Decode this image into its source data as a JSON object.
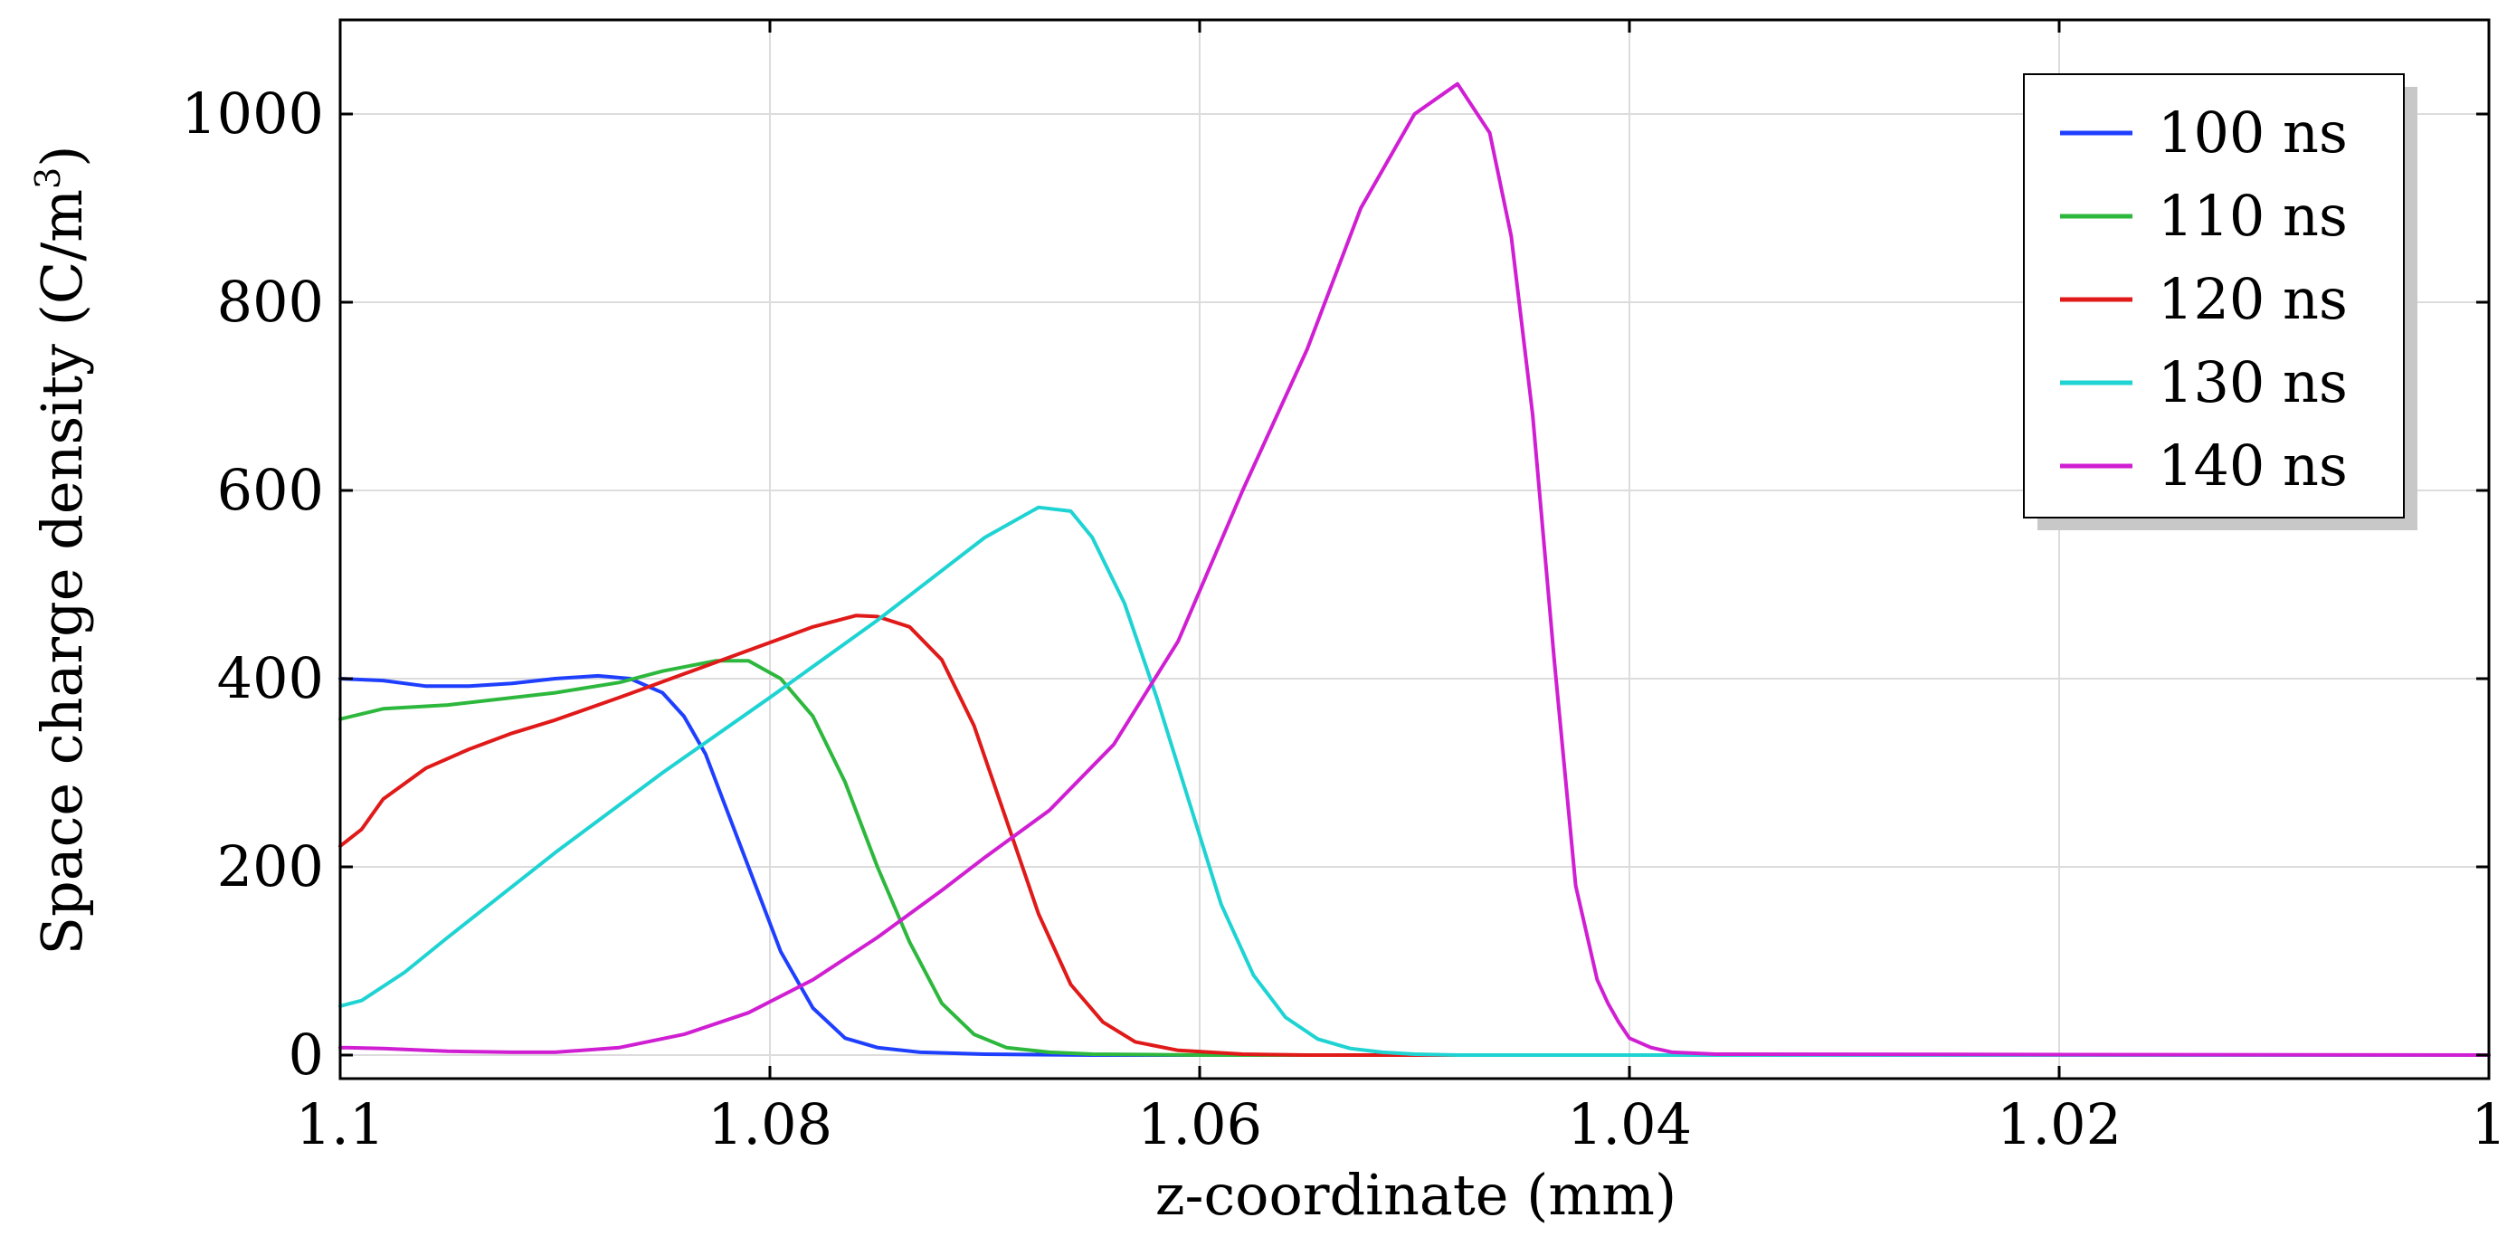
{
  "chart_data": {
    "type": "line",
    "title": "",
    "xlabel": "z-coordinate (mm)",
    "ylabel": "Space charge density (C/m",
    "ylabel_sup": "3",
    "ylabel_close": ")",
    "xlim": [
      1.1,
      1.0
    ],
    "ylim": [
      -25,
      1100
    ],
    "grid": true,
    "legend_position": "top-right",
    "x_ticks": [
      1.1,
      1.08,
      1.06,
      1.04,
      1.02,
      1.0
    ],
    "x_tick_labels": [
      "1.1",
      "1.08",
      "1.06",
      "1.04",
      "1.02",
      "1"
    ],
    "y_ticks": [
      0,
      200,
      400,
      600,
      800,
      1000
    ],
    "y_tick_labels": [
      "0",
      "200",
      "400",
      "600",
      "800",
      "1000"
    ],
    "series": [
      {
        "name": "100 ns",
        "color": "#1f3fff",
        "x": [
          1.1,
          1.098,
          1.096,
          1.094,
          1.092,
          1.09,
          1.088,
          1.0865,
          1.085,
          1.084,
          1.083,
          1.082,
          1.081,
          1.0795,
          1.078,
          1.0765,
          1.075,
          1.073,
          1.07,
          1.065,
          1.06,
          1.0
        ],
        "values": [
          400,
          398,
          392,
          392,
          395,
          400,
          403,
          400,
          385,
          360,
          320,
          260,
          200,
          110,
          50,
          18,
          8,
          3,
          1,
          0,
          0,
          0
        ]
      },
      {
        "name": "110 ns",
        "color": "#2db83d",
        "x": [
          1.1,
          1.098,
          1.095,
          1.09,
          1.087,
          1.085,
          1.0825,
          1.081,
          1.0795,
          1.078,
          1.0765,
          1.075,
          1.0735,
          1.072,
          1.0705,
          1.069,
          1.067,
          1.065,
          1.06,
          1.0
        ],
        "values": [
          357,
          368,
          372,
          385,
          396,
          408,
          419,
          419,
          400,
          360,
          290,
          200,
          120,
          55,
          22,
          8,
          3,
          1,
          0,
          0
        ]
      },
      {
        "name": "120 ns",
        "color": "#e01919",
        "x": [
          1.1,
          1.099,
          1.098,
          1.096,
          1.094,
          1.092,
          1.09,
          1.087,
          1.084,
          1.081,
          1.078,
          1.076,
          1.075,
          1.0735,
          1.072,
          1.0705,
          1.069,
          1.0675,
          1.066,
          1.0645,
          1.063,
          1.061,
          1.058,
          1.055,
          1.0
        ],
        "values": [
          222,
          240,
          272,
          305,
          325,
          342,
          356,
          380,
          405,
          430,
          455,
          467,
          466,
          455,
          420,
          350,
          250,
          150,
          75,
          35,
          14,
          5,
          1,
          0,
          0
        ]
      },
      {
        "name": "130 ns",
        "color": "#1fd3d3",
        "x": [
          1.1,
          1.099,
          1.097,
          1.095,
          1.09,
          1.085,
          1.08,
          1.075,
          1.07,
          1.0675,
          1.066,
          1.065,
          1.0635,
          1.062,
          1.0605,
          1.059,
          1.0575,
          1.056,
          1.0545,
          1.053,
          1.0515,
          1.05,
          1.048,
          1.0
        ],
        "values": [
          52,
          58,
          88,
          125,
          215,
          300,
          380,
          462,
          550,
          582,
          578,
          550,
          480,
          380,
          270,
          160,
          85,
          40,
          17,
          7,
          3,
          1,
          0,
          0
        ]
      },
      {
        "name": "140 ns",
        "color": "#d01fd3",
        "x": [
          1.1,
          1.098,
          1.095,
          1.092,
          1.09,
          1.087,
          1.084,
          1.081,
          1.078,
          1.075,
          1.072,
          1.07,
          1.067,
          1.064,
          1.061,
          1.058,
          1.055,
          1.0525,
          1.05,
          1.048,
          1.0465,
          1.0455,
          1.0445,
          1.0435,
          1.0425,
          1.0415,
          1.041,
          1.0405,
          1.04,
          1.039,
          1.038,
          1.036,
          1.0
        ],
        "values": [
          8,
          7,
          4,
          3,
          3,
          8,
          22,
          45,
          80,
          125,
          175,
          210,
          260,
          330,
          440,
          600,
          750,
          900,
          1000,
          1032,
          980,
          870,
          680,
          420,
          180,
          80,
          55,
          35,
          18,
          8,
          3,
          1,
          0
        ]
      }
    ]
  }
}
